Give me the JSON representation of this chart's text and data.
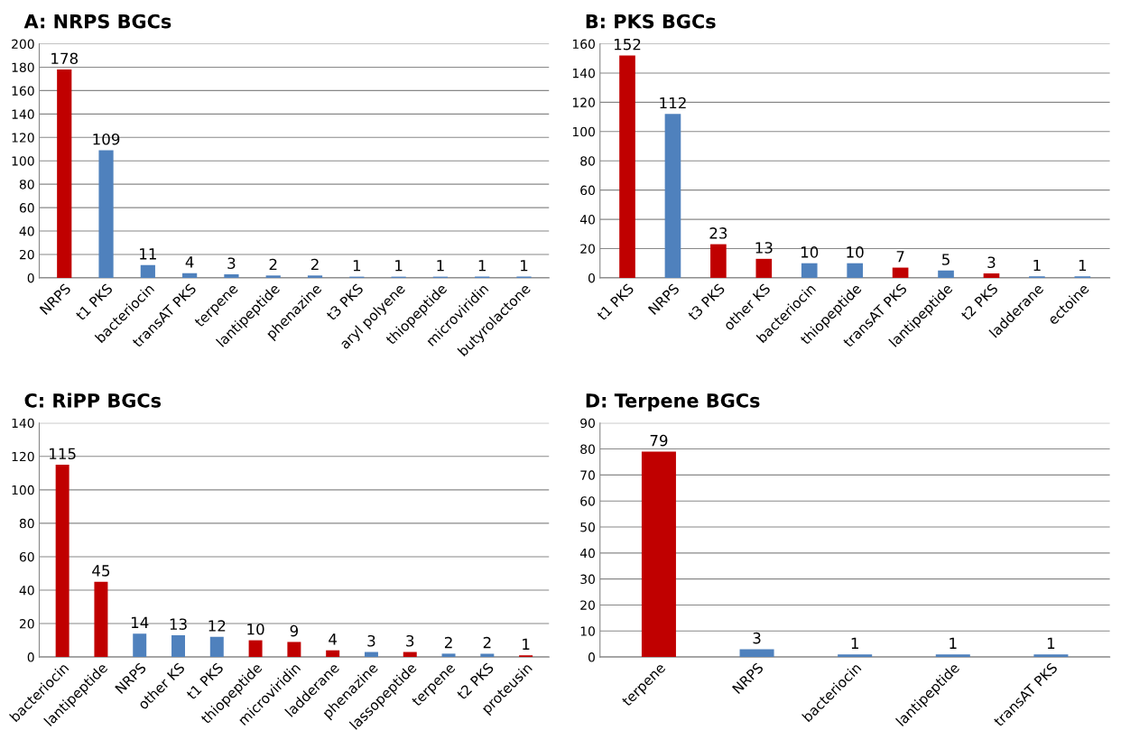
{
  "chart_data": [
    {
      "type": "bar",
      "title": "A: NRPS BGCs",
      "categories": [
        "NRPS",
        "t1 PKS",
        "bacteriocin",
        "transAT PKS",
        "terpene",
        "lantipeptide",
        "phenazine",
        "t3 PKS",
        "aryl polyene",
        "thiopeptide",
        "microviridin",
        "butyrolactone"
      ],
      "values": [
        178,
        109,
        11,
        4,
        3,
        2,
        2,
        1,
        1,
        1,
        1,
        1
      ],
      "colors": [
        "#c00000",
        "#4f81bd",
        "#4f81bd",
        "#4f81bd",
        "#4f81bd",
        "#4f81bd",
        "#4f81bd",
        "#4f81bd",
        "#4f81bd",
        "#4f81bd",
        "#4f81bd",
        "#4f81bd"
      ],
      "ylim": [
        0,
        200
      ],
      "yticks": [
        0,
        20,
        40,
        60,
        80,
        100,
        120,
        140,
        160,
        180,
        200
      ],
      "grid": "y",
      "data_labels": true
    },
    {
      "type": "bar",
      "title": "B: PKS BGCs",
      "categories": [
        "t1 PKS",
        "NRPS",
        "t3 PKS",
        "other KS",
        "bacteriocin",
        "thiopeptide",
        "transAT PKS",
        "lantipeptide",
        "t2 PKS",
        "ladderane",
        "ectoine"
      ],
      "values": [
        152,
        112,
        23,
        13,
        10,
        10,
        7,
        5,
        3,
        1,
        1
      ],
      "colors": [
        "#c00000",
        "#4f81bd",
        "#c00000",
        "#c00000",
        "#4f81bd",
        "#4f81bd",
        "#c00000",
        "#4f81bd",
        "#c00000",
        "#4f81bd",
        "#4f81bd"
      ],
      "ylim": [
        0,
        160
      ],
      "yticks": [
        0,
        20,
        40,
        60,
        80,
        100,
        120,
        140,
        160
      ],
      "grid": "y",
      "data_labels": true
    },
    {
      "type": "bar",
      "title": "C: RiPP BGCs",
      "categories": [
        "bacteriocin",
        "lantipeptide",
        "NRPS",
        "other KS",
        "t1 PKS",
        "thiopeptide",
        "microviridin",
        "ladderane",
        "phenazine",
        "lassopeptide",
        "terpene",
        "t2 PKS",
        "proteusin"
      ],
      "values": [
        115,
        45,
        14,
        13,
        12,
        10,
        9,
        4,
        3,
        3,
        2,
        2,
        1
      ],
      "colors": [
        "#c00000",
        "#c00000",
        "#4f81bd",
        "#4f81bd",
        "#4f81bd",
        "#c00000",
        "#c00000",
        "#c00000",
        "#4f81bd",
        "#c00000",
        "#4f81bd",
        "#4f81bd",
        "#c00000"
      ],
      "ylim": [
        0,
        140
      ],
      "yticks": [
        0,
        20,
        40,
        60,
        80,
        100,
        120,
        140
      ],
      "grid": "y",
      "data_labels": true
    },
    {
      "type": "bar",
      "title": "D: Terpene BGCs",
      "categories": [
        "terpene",
        "NRPS",
        "bacteriocin",
        "lantipeptide",
        "transAT PKS"
      ],
      "values": [
        79,
        3,
        1,
        1,
        1
      ],
      "colors": [
        "#c00000",
        "#4f81bd",
        "#4f81bd",
        "#4f81bd",
        "#4f81bd"
      ],
      "ylim": [
        0,
        90
      ],
      "yticks": [
        0,
        10,
        20,
        30,
        40,
        50,
        60,
        70,
        80,
        90
      ],
      "grid": "y",
      "data_labels": true
    }
  ]
}
